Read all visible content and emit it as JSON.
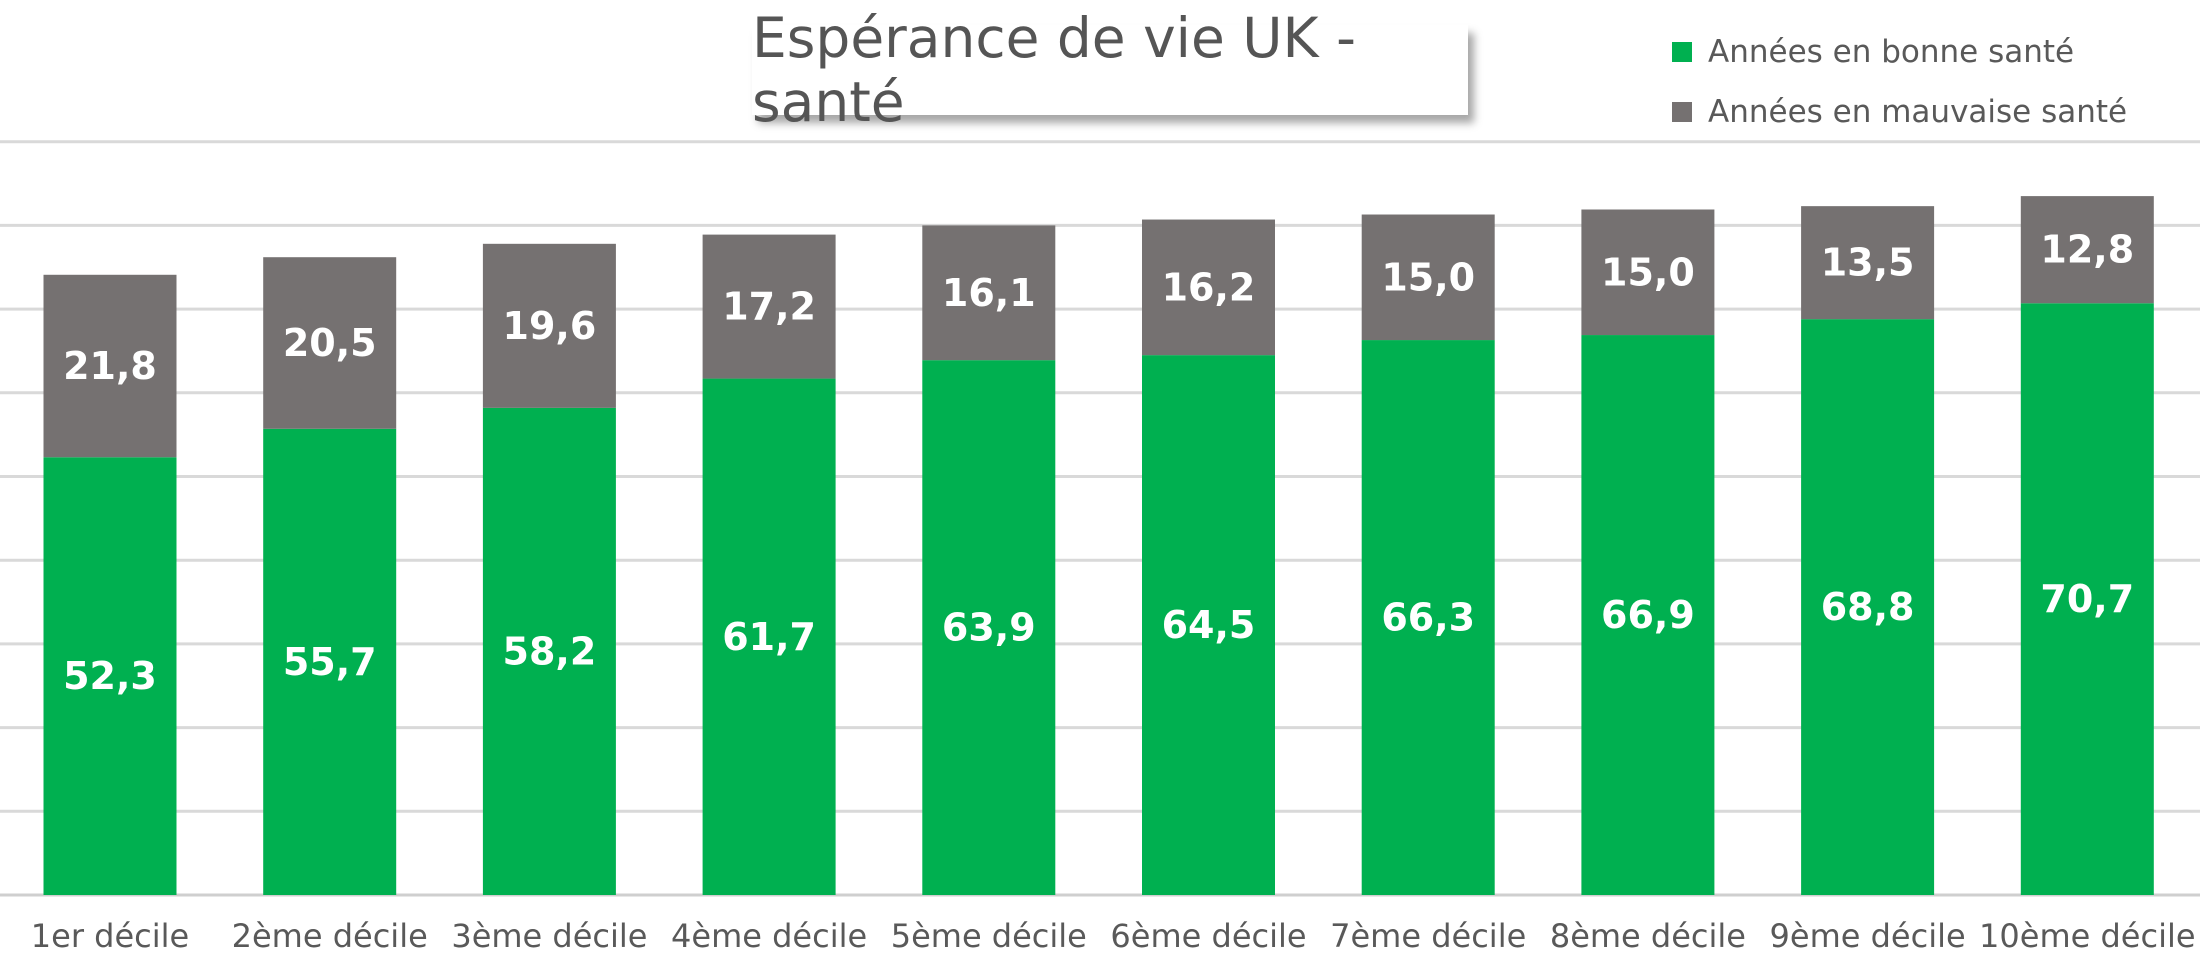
{
  "chart_data": {
    "type": "bar",
    "stacked": true,
    "title": "Espérance de vie UK - santé",
    "categories": [
      "1er décile",
      "2ème décile",
      "3ème décile",
      "4ème décile",
      "5ème décile",
      "6ème décile",
      "7ème décile",
      "8ème décile",
      "9ème décile",
      "10ème décile"
    ],
    "series": [
      {
        "name": "Années en bonne santé",
        "color": "#00b050",
        "values": [
          52.3,
          55.7,
          58.2,
          61.7,
          63.9,
          64.5,
          66.3,
          66.9,
          68.8,
          70.7
        ]
      },
      {
        "name": "Années en mauvaise santé",
        "color": "#757171",
        "values": [
          21.8,
          20.5,
          19.6,
          17.2,
          16.1,
          16.2,
          15.0,
          15.0,
          13.5,
          12.8
        ]
      }
    ],
    "ylim": [
      0,
      90
    ],
    "grid": true,
    "legend_position": "top-right",
    "decimal_separator": ","
  }
}
